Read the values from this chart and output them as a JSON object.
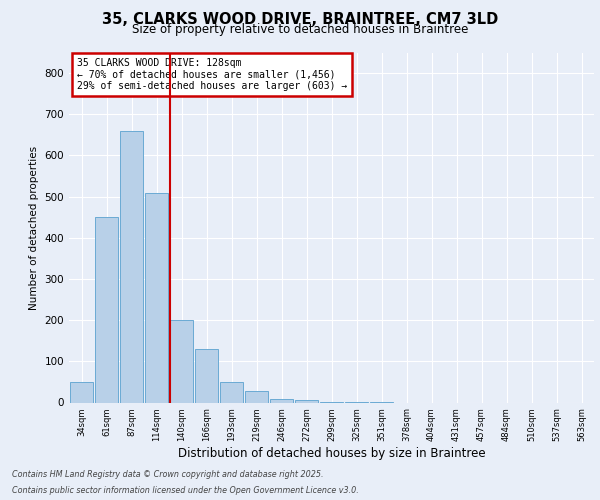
{
  "title_line1": "35, CLARKS WOOD DRIVE, BRAINTREE, CM7 3LD",
  "title_line2": "Size of property relative to detached houses in Braintree",
  "xlabel": "Distribution of detached houses by size in Braintree",
  "ylabel": "Number of detached properties",
  "bin_labels": [
    "34sqm",
    "61sqm",
    "87sqm",
    "114sqm",
    "140sqm",
    "166sqm",
    "193sqm",
    "219sqm",
    "246sqm",
    "272sqm",
    "299sqm",
    "325sqm",
    "351sqm",
    "378sqm",
    "404sqm",
    "431sqm",
    "457sqm",
    "484sqm",
    "510sqm",
    "537sqm",
    "563sqm"
  ],
  "bar_values": [
    50,
    450,
    660,
    510,
    200,
    130,
    50,
    28,
    8,
    5,
    2,
    1,
    2,
    0,
    0,
    0,
    0,
    0,
    0,
    0,
    0
  ],
  "bar_color": "#b8d0e8",
  "bar_edge_color": "#6aaad4",
  "red_line_label": "35 CLARKS WOOD DRIVE: 128sqm",
  "annotation_line2": "← 70% of detached houses are smaller (1,456)",
  "annotation_line3": "29% of semi-detached houses are larger (603) →",
  "annotation_box_color": "#ffffff",
  "annotation_box_edge": "#cc0000",
  "ylim": [
    0,
    850
  ],
  "yticks": [
    0,
    100,
    200,
    300,
    400,
    500,
    600,
    700,
    800
  ],
  "footer_line1": "Contains HM Land Registry data © Crown copyright and database right 2025.",
  "footer_line2": "Contains public sector information licensed under the Open Government Licence v3.0.",
  "background_color": "#e8eef8",
  "plot_bg_color": "#e8eef8"
}
